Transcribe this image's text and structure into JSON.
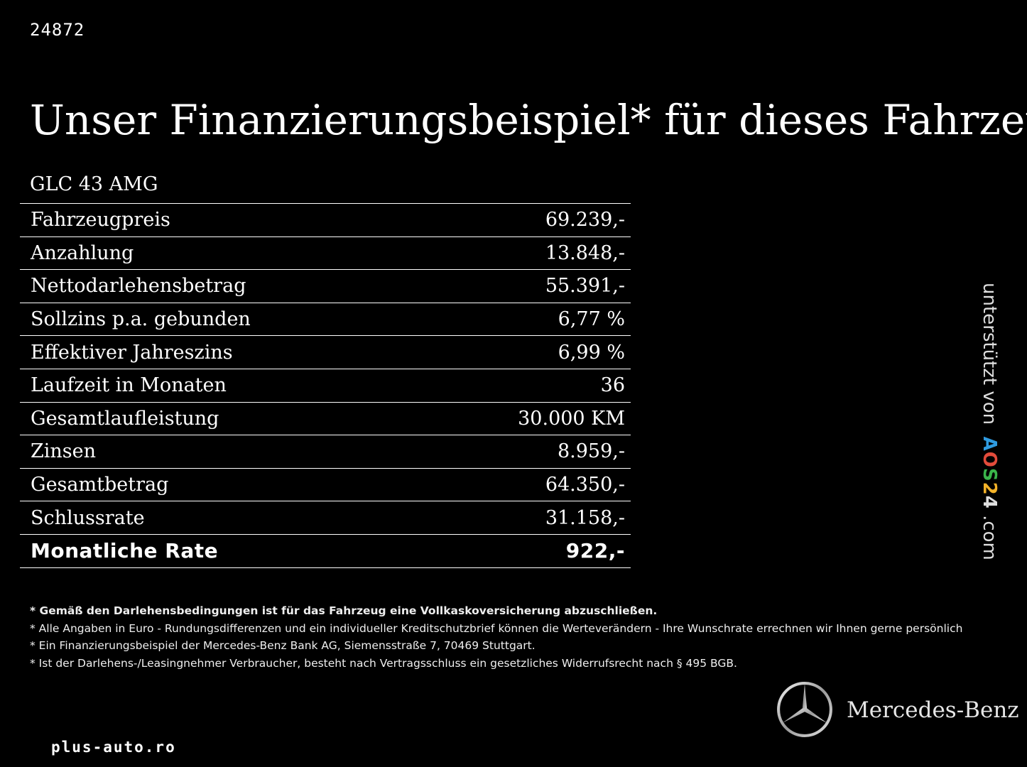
{
  "ad_id": "24872",
  "headline": "Unser Finanzierungsbeispiel* für dieses Fahrzeug:",
  "model": "GLC 43 AMG",
  "rows": [
    {
      "label": "Fahrzeugpreis",
      "value": "69.239,-"
    },
    {
      "label": "Anzahlung",
      "value": "13.848,-"
    },
    {
      "label": "Nettodarlehensbetrag",
      "value": "55.391,-"
    },
    {
      "label": "Sollzins p.a. gebunden",
      "value": "6,77 %"
    },
    {
      "label": "Effektiver Jahreszins",
      "value": "6,99 %"
    },
    {
      "label": "Laufzeit in Monaten",
      "value": "36"
    },
    {
      "label": "Gesamtlaufleistung",
      "value": "30.000 KM"
    },
    {
      "label": "Zinsen",
      "value": "8.959,-"
    },
    {
      "label": "Gesamtbetrag",
      "value": "64.350,-"
    },
    {
      "label": "Schlussrate",
      "value": "31.158,-"
    },
    {
      "label": "Monatliche Rate",
      "value": "922,-"
    }
  ],
  "footnotes": [
    "* Gemäß den Darlehensbedingungen ist für das Fahrzeug eine Vollkaskoversicherung abzuschließen.",
    "* Alle Angaben in Euro - Rundungsdifferenzen und ein individueller Kreditschutzbrief können die Werteverändern - Ihre Wunschrate errechnen wir Ihnen gerne persönlich",
    "* Ein Finanzierungsbeispiel der Mercedes-Benz Bank AG, Siemensstraße 7, 70469 Stuttgart.",
    "* Ist der Darlehens-/Leasingnehmer Verbraucher, besteht nach Vertragsschluss ein gesetzliches Widerrufsrecht nach § 495 BGB."
  ],
  "side_badge": {
    "prefix": "unterstützt von",
    "brand_letters": [
      "A",
      "O",
      "S",
      "2",
      "4"
    ],
    "suffix": ".com"
  },
  "logo": {
    "icon": "mercedes-star-icon",
    "name": "Mercedes-Benz"
  },
  "site": "plus-auto.ro"
}
